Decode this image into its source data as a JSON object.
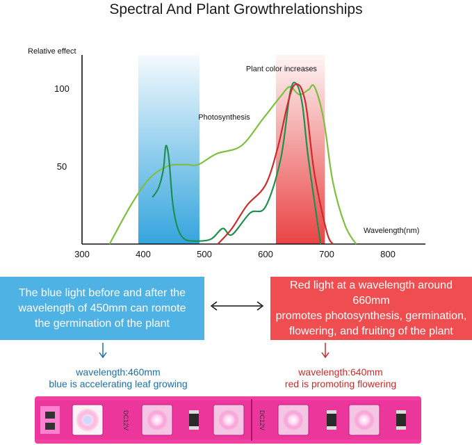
{
  "title": "Spectral And Plant  Growthrelationships",
  "chart_data": {
    "type": "line",
    "title": "Spectral And Plant  Growthrelationships",
    "ylabel": "Relative effect",
    "xlabel": "Wavelength(nm)",
    "xlim": [
      300,
      850
    ],
    "ylim": [
      0,
      125
    ],
    "xticks": [
      300,
      400,
      500,
      600,
      700,
      800
    ],
    "yticks": [
      50,
      100
    ],
    "bands": [
      {
        "label": "blue",
        "from": 392,
        "to": 492,
        "color": "#2aa0dc"
      },
      {
        "label": "red",
        "from": 617,
        "to": 697,
        "color": "#e83a3a"
      }
    ],
    "annotations": [
      {
        "text": "Photosynthesis",
        "x": 490,
        "y": 80
      },
      {
        "text": "Plant color increases",
        "x": 568,
        "y": 111
      }
    ],
    "series": [
      {
        "color": "#7fbf3f",
        "x": [
          345,
          380,
          410,
          440,
          470,
          490,
          520,
          560,
          595,
          625,
          640,
          655,
          670,
          680,
          695,
          710,
          730,
          748
        ],
        "y": [
          0,
          25,
          42,
          50,
          51,
          51,
          58,
          63,
          80,
          95,
          101,
          96,
          99,
          101,
          80,
          40,
          12,
          0
        ]
      },
      {
        "color": "#1f8f4f",
        "x": [
          415,
          425,
          433,
          437,
          442,
          448,
          455,
          465,
          480,
          510,
          530,
          545,
          575,
          600,
          625,
          640,
          650,
          660,
          670,
          690
        ],
        "y": [
          30,
          36,
          48,
          63,
          55,
          27,
          12,
          4,
          2,
          3,
          10,
          6,
          20,
          24,
          55,
          97,
          103,
          90,
          55,
          0
        ]
      },
      {
        "color": "#cc2b2b",
        "x": [
          522,
          545,
          570,
          600,
          620,
          635,
          645,
          655,
          662,
          668,
          680,
          700,
          710
        ],
        "y": [
          0,
          10,
          25,
          38,
          62,
          88,
          101,
          102,
          96,
          84,
          45,
          8,
          0
        ]
      }
    ]
  },
  "left_box": {
    "lines": [
      "The blue light before and after the",
      "wavelength of 450mm can romote",
      "the germination of the plant"
    ]
  },
  "right_box": {
    "lines": [
      "Red light at a wavelength around 660mm",
      "promotes photosynthesis, germination,",
      "flowering, and fruiting of the plant"
    ]
  },
  "left_caption": {
    "line1": "wavelength:460mm",
    "line2": "blue is accelerating leaf growing"
  },
  "right_caption": {
    "line1": "wavelength:640mm",
    "line2": "red is promoting flowering"
  },
  "strip_labels": [
    "DC12V",
    "DC12V"
  ],
  "colors": {
    "blue_box": "#4fb2e4",
    "red_box": "#ef4d4f",
    "strip": "#f03fa0"
  }
}
